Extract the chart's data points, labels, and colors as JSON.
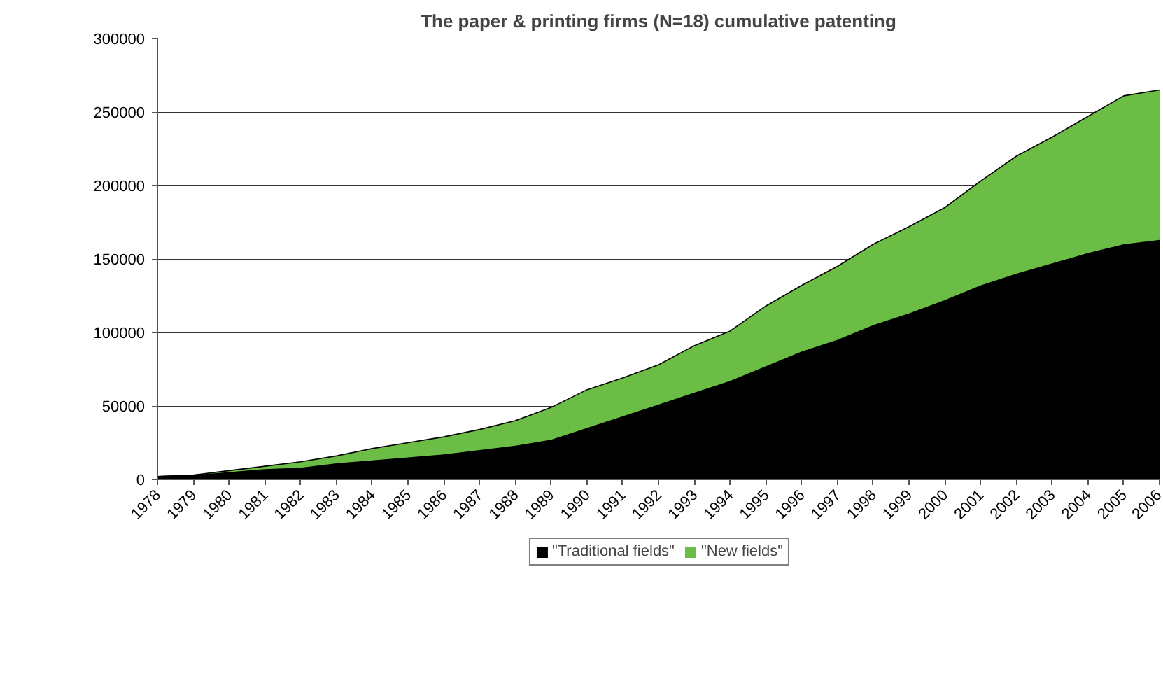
{
  "chart_data": {
    "type": "area",
    "title": "The paper & printing firms (N=18) cumulative patenting",
    "stacked": true,
    "categories": [
      "1978",
      "1979",
      "1980",
      "1981",
      "1982",
      "1983",
      "1984",
      "1985",
      "1986",
      "1987",
      "1988",
      "1989",
      "1990",
      "1991",
      "1992",
      "1993",
      "1994",
      "1995",
      "1996",
      "1997",
      "1998",
      "1999",
      "2000",
      "2001",
      "2002",
      "2003",
      "2004",
      "2005",
      "2006"
    ],
    "series": [
      {
        "name": "\"Traditional fields\"",
        "color": "#000000",
        "values": [
          2000,
          3000,
          5000,
          7000,
          8000,
          11000,
          13000,
          15000,
          17000,
          20000,
          23000,
          27000,
          35000,
          43000,
          51000,
          59000,
          67000,
          77000,
          87000,
          95000,
          105000,
          113000,
          122000,
          132000,
          140000,
          147000,
          154000,
          160000,
          163000
        ]
      },
      {
        "name": "\"New fields\"",
        "color": "#6cbd45",
        "values": [
          0,
          0,
          1000,
          2000,
          4000,
          5000,
          8000,
          10000,
          12000,
          14000,
          17000,
          22000,
          26000,
          26000,
          27000,
          32000,
          34000,
          41000,
          45000,
          50000,
          55000,
          59000,
          63000,
          71000,
          80000,
          86000,
          93000,
          101000,
          102000
        ]
      }
    ],
    "ylim": [
      0,
      300000
    ],
    "yticks": [
      0,
      50000,
      100000,
      150000,
      200000,
      250000,
      300000
    ],
    "grid": "y",
    "legend": "bottom"
  }
}
